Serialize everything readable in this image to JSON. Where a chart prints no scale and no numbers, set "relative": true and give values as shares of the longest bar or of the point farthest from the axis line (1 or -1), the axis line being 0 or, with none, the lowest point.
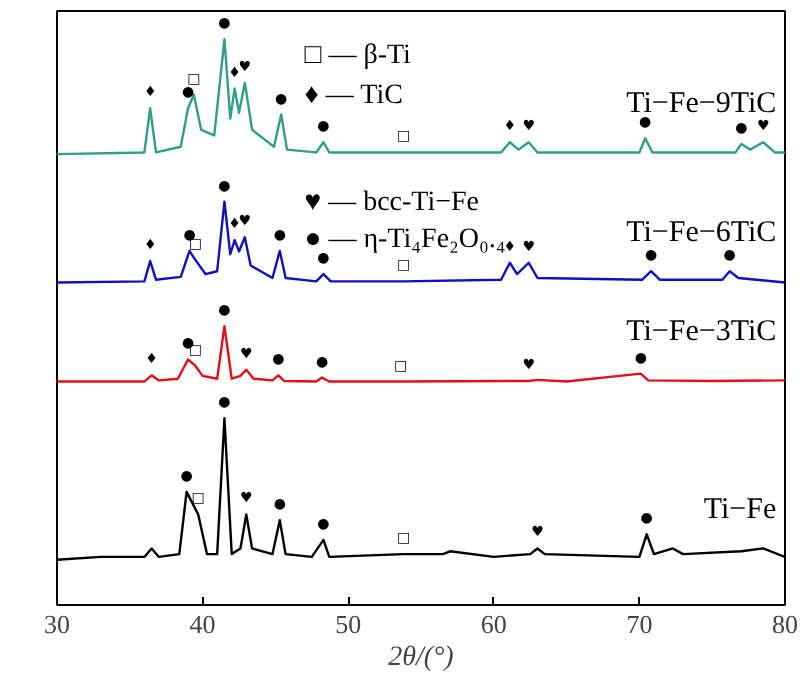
{
  "chart_data": {
    "type": "line",
    "relative": true,
    "xlabel": "2θ/(°)",
    "xlim": [
      30,
      80
    ],
    "xticks": [
      30,
      40,
      50,
      60,
      70,
      80
    ],
    "grid": false,
    "series": [
      {
        "name": "Ti−Fe",
        "color": "#000000",
        "x": [
          30,
          33,
          34.5,
          36,
          36.5,
          37,
          38.4,
          38.9,
          39.3,
          39.7,
          40.3,
          41,
          41.5,
          42,
          42.6,
          43,
          43.4,
          44.8,
          45.3,
          45.7,
          47.5,
          48.3,
          48.7,
          53.8,
          56.5,
          57,
          60,
          62.5,
          63,
          63.5,
          70,
          70.5,
          71,
          72.3,
          73,
          77,
          78.5,
          80
        ],
        "values": [
          0.08,
          0.085,
          0.085,
          0.085,
          0.1,
          0.085,
          0.09,
          0.2,
          0.18,
          0.16,
          0.09,
          0.09,
          0.33,
          0.09,
          0.1,
          0.16,
          0.1,
          0.09,
          0.15,
          0.09,
          0.085,
          0.115,
          0.085,
          0.09,
          0.09,
          0.095,
          0.085,
          0.09,
          0.1,
          0.09,
          0.085,
          0.125,
          0.09,
          0.1,
          0.09,
          0.095,
          0.1,
          0.085
        ]
      },
      {
        "name": "Ti−Fe−3TiC",
        "color": "#e0101a",
        "x": [
          30,
          36,
          36.5,
          37,
          38.3,
          39,
          39.5,
          40,
          41,
          41.5,
          42,
          42.6,
          43,
          43.5,
          44.8,
          45.2,
          45.6,
          47.8,
          48.2,
          48.7,
          53.6,
          62.4,
          63,
          65,
          70.1,
          70.6,
          75,
          80
        ],
        "values": [
          0.395,
          0.395,
          0.406,
          0.397,
          0.4,
          0.434,
          0.423,
          0.405,
          0.4,
          0.493,
          0.4,
          0.405,
          0.416,
          0.4,
          0.397,
          0.406,
          0.396,
          0.395,
          0.402,
          0.395,
          0.395,
          0.396,
          0.398,
          0.395,
          0.409,
          0.397,
          0.396,
          0.397
        ]
      },
      {
        "name": "Ti−Fe−6TiC",
        "color": "#1010c0",
        "x": [
          30,
          36,
          36.4,
          36.8,
          38.5,
          39.1,
          39.5,
          40.2,
          41,
          41.5,
          41.9,
          42.2,
          42.5,
          42.9,
          43.3,
          44.8,
          45.3,
          45.7,
          47.8,
          48.3,
          48.8,
          53.8,
          60.5,
          61.1,
          61.6,
          62.4,
          63,
          70.2,
          70.8,
          71.4,
          75.7,
          76.2,
          76.8,
          80
        ],
        "values": [
          0.57,
          0.572,
          0.608,
          0.575,
          0.58,
          0.626,
          0.61,
          0.585,
          0.59,
          0.713,
          0.62,
          0.645,
          0.625,
          0.65,
          0.6,
          0.578,
          0.626,
          0.578,
          0.572,
          0.585,
          0.572,
          0.572,
          0.575,
          0.605,
          0.585,
          0.605,
          0.578,
          0.575,
          0.59,
          0.575,
          0.575,
          0.59,
          0.578,
          0.57
        ]
      },
      {
        "name": "Ti−Fe−9TiC",
        "color": "#2f9e8c",
        "x": [
          30,
          36,
          36.4,
          36.8,
          38.5,
          39,
          39.4,
          39.9,
          40.8,
          41.5,
          41.9,
          42.2,
          42.5,
          42.9,
          43.4,
          44.9,
          45.4,
          45.8,
          47.8,
          48.3,
          48.7,
          53.8,
          60.5,
          61.1,
          61.7,
          62.4,
          63,
          70,
          70.4,
          70.9,
          76.6,
          77,
          77.6,
          78.5,
          79.3,
          80
        ],
        "values": [
          0.797,
          0.8,
          0.878,
          0.8,
          0.81,
          0.878,
          0.902,
          0.84,
          0.83,
          1.0,
          0.86,
          0.913,
          0.87,
          0.923,
          0.84,
          0.81,
          0.867,
          0.805,
          0.8,
          0.818,
          0.8,
          0.8,
          0.8,
          0.818,
          0.805,
          0.818,
          0.8,
          0.8,
          0.825,
          0.8,
          0.8,
          0.815,
          0.805,
          0.818,
          0.8,
          0.8
        ]
      }
    ],
    "annotations": [
      "□ — β-Ti",
      "♦ — TiC",
      "♥ — bcc-Ti−Fe",
      "● — η-Ti₄Fe₂O₀.₄",
      {
        "text": "●",
        "x": 41.5,
        "y": 0.33
      },
      {
        "text": "●",
        "x": 38.9,
        "y": 0.2
      },
      {
        "text": "□",
        "x": 39.7,
        "y": 0.16
      },
      {
        "text": "♥",
        "x": 43,
        "y": 0.16
      },
      {
        "text": "●",
        "x": 45.3,
        "y": 0.15
      },
      {
        "text": "●",
        "x": 48.3,
        "y": 0.115
      },
      {
        "text": "□",
        "x": 53.8,
        "y": 0.09
      },
      {
        "text": "♥",
        "x": 63,
        "y": 0.1
      },
      {
        "text": "●",
        "x": 70.5,
        "y": 0.125
      },
      {
        "text": "♦",
        "x": 36.5,
        "y": 0.406
      },
      {
        "text": "●",
        "x": 39,
        "y": 0.434
      },
      {
        "text": "□",
        "x": 39.5,
        "y": 0.423
      },
      {
        "text": "●",
        "x": 41.5,
        "y": 0.493
      },
      {
        "text": "♥",
        "x": 43,
        "y": 0.416
      },
      {
        "text": "●",
        "x": 45.2,
        "y": 0.406
      },
      {
        "text": "●",
        "x": 48.2,
        "y": 0.402
      },
      {
        "text": "□",
        "x": 53.6,
        "y": 0.395
      },
      {
        "text": "♥",
        "x": 62.4,
        "y": 0.396
      },
      {
        "text": "●",
        "x": 70.1,
        "y": 0.409
      },
      {
        "text": "♦",
        "x": 36.4,
        "y": 0.608
      },
      {
        "text": "●",
        "x": 39.1,
        "y": 0.626
      },
      {
        "text": "□",
        "x": 39.5,
        "y": 0.61
      },
      {
        "text": "●",
        "x": 41.5,
        "y": 0.713
      },
      {
        "text": "♦",
        "x": 42.2,
        "y": 0.645
      },
      {
        "text": "♥",
        "x": 42.9,
        "y": 0.65
      },
      {
        "text": "●",
        "x": 45.3,
        "y": 0.626
      },
      {
        "text": "●",
        "x": 48.3,
        "y": 0.585
      },
      {
        "text": "□",
        "x": 53.8,
        "y": 0.572
      },
      {
        "text": "♦",
        "x": 61.1,
        "y": 0.605
      },
      {
        "text": "♥",
        "x": 62.4,
        "y": 0.605
      },
      {
        "text": "●",
        "x": 70.8,
        "y": 0.59
      },
      {
        "text": "●",
        "x": 76.2,
        "y": 0.59
      },
      {
        "text": "♦",
        "x": 36.4,
        "y": 0.878
      },
      {
        "text": "●",
        "x": 39,
        "y": 0.878
      },
      {
        "text": "□",
        "x": 39.4,
        "y": 0.902
      },
      {
        "text": "●",
        "x": 41.5,
        "y": 1.0
      },
      {
        "text": "♦",
        "x": 42.2,
        "y": 0.913
      },
      {
        "text": "♥",
        "x": 42.9,
        "y": 0.923
      },
      {
        "text": "●",
        "x": 45.4,
        "y": 0.867
      },
      {
        "text": "●",
        "x": 48.3,
        "y": 0.818
      },
      {
        "text": "□",
        "x": 53.8,
        "y": 0.8
      },
      {
        "text": "♦",
        "x": 61.1,
        "y": 0.818
      },
      {
        "text": "♥",
        "x": 62.4,
        "y": 0.818
      },
      {
        "text": "●",
        "x": 70.4,
        "y": 0.825
      },
      {
        "text": "●",
        "x": 77,
        "y": 0.815
      },
      {
        "text": "♥",
        "x": 78.5,
        "y": 0.818
      }
    ]
  }
}
